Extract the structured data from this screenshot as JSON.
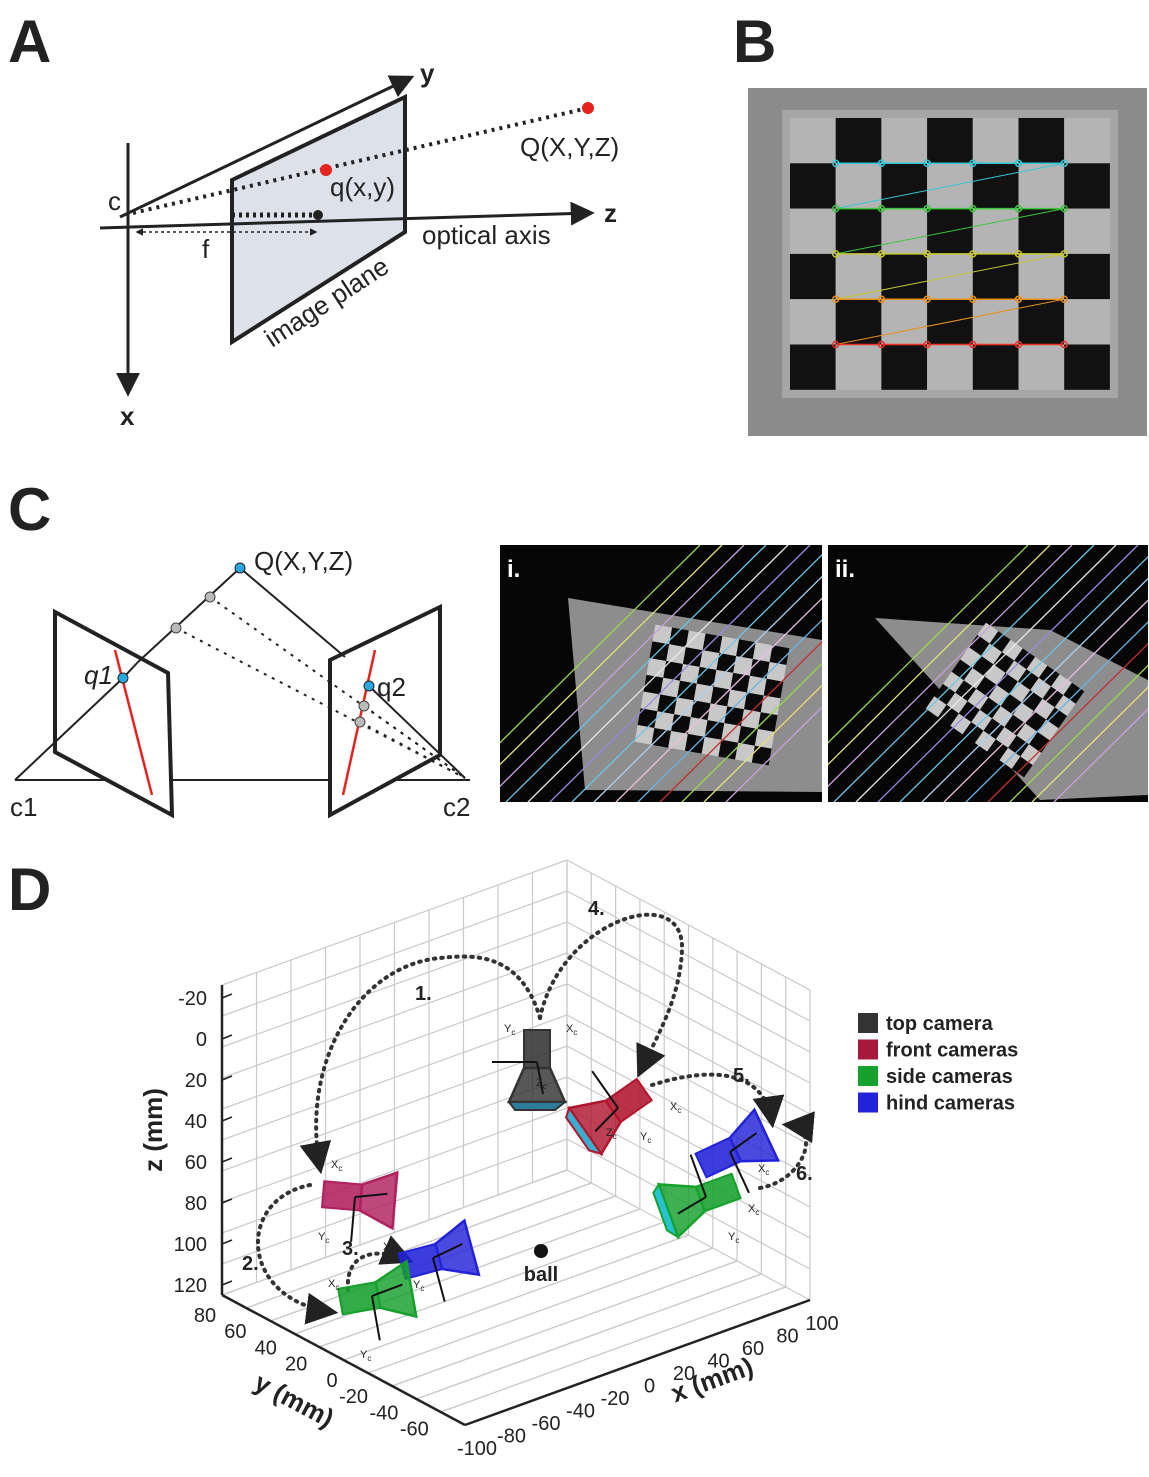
{
  "panels": {
    "A": {
      "label": "A",
      "axis_labels": {
        "x": "x",
        "y": "y",
        "z": "z"
      },
      "points": {
        "c": "c",
        "f": "f",
        "q": "q(x,y)",
        "Q": "Q(X,Y,Z)"
      },
      "captions": {
        "optical_axis": "optical axis",
        "image_plane": "image plane"
      }
    },
    "B": {
      "label": "B"
    },
    "C": {
      "label": "C",
      "points": {
        "Q": "Q(X,Y,Z)",
        "q1": "q1",
        "q2": "q2",
        "c1": "c1",
        "c2": "c2"
      },
      "insets": [
        "i.",
        "ii."
      ]
    },
    "D": {
      "label": "D",
      "z_axis": {
        "title": "z (mm)",
        "ticks": [
          -20,
          0,
          20,
          40,
          60,
          80,
          100,
          120
        ]
      },
      "y_axis": {
        "title": "y (mm)",
        "ticks": [
          80,
          60,
          40,
          20,
          0,
          -20,
          -40,
          -60
        ]
      },
      "x_axis": {
        "title": "x (mm)",
        "ticks": [
          -100,
          -80,
          -60,
          -40,
          -20,
          0,
          20,
          40,
          60,
          80,
          100
        ]
      },
      "legend": [
        "top camera",
        "front cameras",
        "side cameras",
        "hind cameras"
      ],
      "path_labels": [
        "1.",
        "2.",
        "3.",
        "4.",
        "5.",
        "6."
      ],
      "ball": "ball",
      "camera_frame": {
        "x": "X",
        "y": "Y",
        "z": "Z",
        "subscript": "c"
      }
    }
  }
}
